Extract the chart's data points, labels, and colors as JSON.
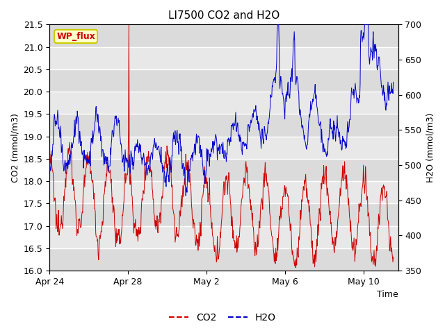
{
  "title": "LI7500 CO2 and H2O",
  "xlabel": "Time",
  "ylabel_left": "CO2 (mmol/m3)",
  "ylabel_right": "H2O (mmol/m3)",
  "ylim_left": [
    16.0,
    21.5
  ],
  "ylim_right": [
    350,
    700
  ],
  "yticks_left": [
    16.0,
    16.5,
    17.0,
    17.5,
    18.0,
    18.5,
    19.0,
    19.5,
    20.0,
    20.5,
    21.0,
    21.5
  ],
  "yticks_right": [
    350,
    400,
    450,
    500,
    550,
    600,
    650,
    700
  ],
  "xtick_labels": [
    "Apr 24",
    "Apr 28",
    "May 2",
    "May 6",
    "May 10"
  ],
  "background_color": "#ffffff",
  "plot_bg_color": "#e8e8e8",
  "grid_color": "#ffffff",
  "annotation_text": "WP_flux",
  "annotation_bg": "#ffffcc",
  "annotation_border": "#cccc00",
  "legend_items": [
    "CO2",
    "H2O"
  ],
  "co2_color": "#cc0000",
  "h2o_color": "#0000cc",
  "title_fontsize": 11,
  "axis_label_fontsize": 9,
  "tick_fontsize": 9,
  "legend_fontsize": 10
}
